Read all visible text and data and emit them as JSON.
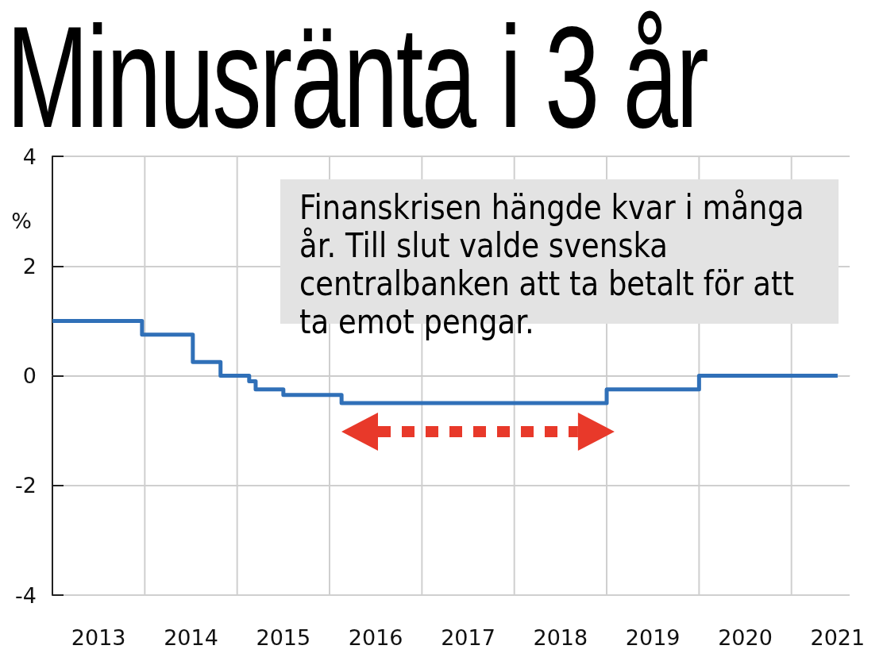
{
  "chart_data": {
    "type": "step",
    "title": "Minusränta i 3 år",
    "ylabel": "%",
    "annotations": [
      "Finanskrisen hängde kvar i många år. Till slut valde svenska centralbanken att ta betalt för att ta emot pengar."
    ],
    "x": [
      2013.0,
      2013.97,
      2014.52,
      2014.82,
      2015.13,
      2015.2,
      2015.5,
      2016.13,
      2019.0,
      2020.0,
      2021.5
    ],
    "series": [
      {
        "color": "#3070b8",
        "values": [
          1,
          0.75,
          0.25,
          0,
          -0.1,
          -0.25,
          -0.35,
          -0.5,
          -0.25,
          0,
          0
        ]
      }
    ],
    "xlim": [
      2013,
      2021.63
    ],
    "xticks": [
      {
        "value": 2013.5,
        "label": "2013"
      },
      {
        "value": 2014,
        "label": null
      },
      {
        "value": 2014.5,
        "label": "2014"
      },
      {
        "value": 2015,
        "label": null
      },
      {
        "value": 2015.5,
        "label": "2015"
      },
      {
        "value": 2016,
        "label": null
      },
      {
        "value": 2016.5,
        "label": "2016"
      },
      {
        "value": 2017,
        "label": null
      },
      {
        "value": 2017.5,
        "label": "2017"
      },
      {
        "value": 2018,
        "label": null
      },
      {
        "value": 2018.5,
        "label": "2018"
      },
      {
        "value": 2019,
        "label": null
      },
      {
        "value": 2019.5,
        "label": "2019"
      },
      {
        "value": 2020,
        "label": null
      },
      {
        "value": 2020.5,
        "label": "2020"
      },
      {
        "value": 2021,
        "label": null
      },
      {
        "value": 2021.5,
        "label": "2021"
      }
    ],
    "ylim": [
      -4,
      4
    ],
    "yticks": [
      -4,
      -2,
      0,
      2,
      4
    ],
    "grid": true,
    "marker": "none",
    "line_style": "solid"
  }
}
